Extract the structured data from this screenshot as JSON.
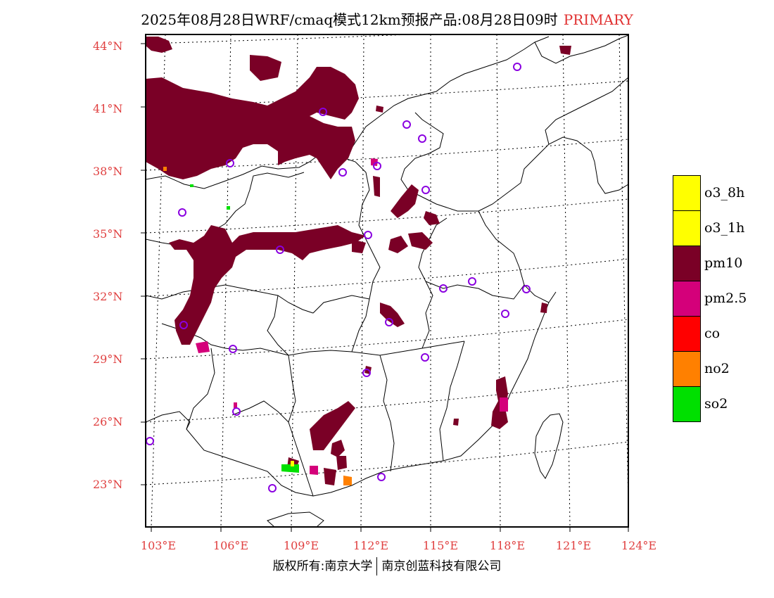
{
  "title": {
    "main": "2025年08月28日WRF/cmaq模式12km预报产品:08月28日09时",
    "tag": "PRIMARY"
  },
  "latitude_labels": [
    "44°N",
    "41°N",
    "38°N",
    "35°N",
    "32°N",
    "29°N",
    "26°N",
    "23°N"
  ],
  "longitude_labels": [
    "103°E",
    "106°E",
    "109°E",
    "112°E",
    "115°E",
    "118°E",
    "121°E",
    "124°E"
  ],
  "legend": [
    {
      "label": "o3_8h",
      "color": "#ffff00"
    },
    {
      "label": "o3_1h",
      "color": "#ffff00"
    },
    {
      "label": "pm10",
      "color": "#7a0026"
    },
    {
      "label": "pm2.5",
      "color": "#d4007a"
    },
    {
      "label": "co",
      "color": "#ff0000"
    },
    {
      "label": "no2",
      "color": "#ff8000"
    },
    {
      "label": "so2",
      "color": "#00e000"
    }
  ],
  "footer": {
    "left": "版权所有:南京大学",
    "right": "南京创蓝科技有限公司"
  }
}
